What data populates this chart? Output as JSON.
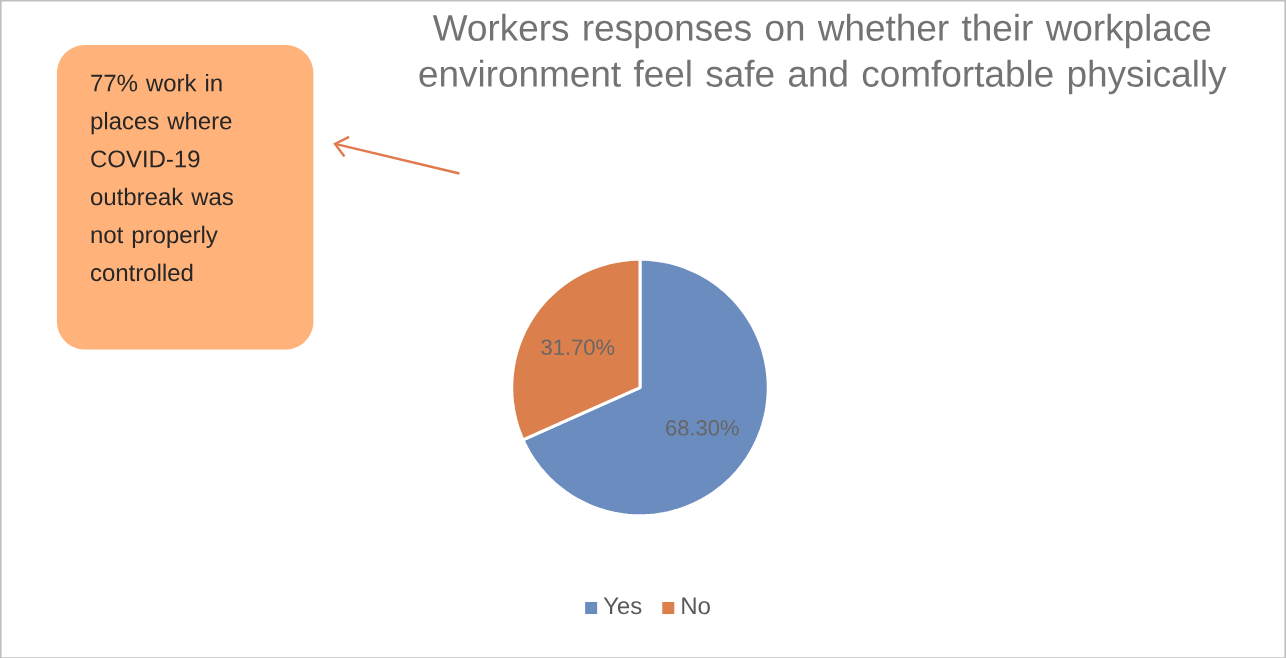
{
  "chart_data": {
    "type": "pie",
    "title": "Workers responses on whether their workplace environment feel safe and comfortable physically",
    "categories": [
      "Yes",
      "No"
    ],
    "values": [
      68.3,
      31.7
    ],
    "colors": [
      "#6b8cbf",
      "#db7f4d"
    ],
    "value_labels": [
      "68.30%",
      "31.70%"
    ],
    "legend": "bottom",
    "annotations": [
      "77% work in places where COVID-19 outbreak was not properly controlled"
    ]
  }
}
